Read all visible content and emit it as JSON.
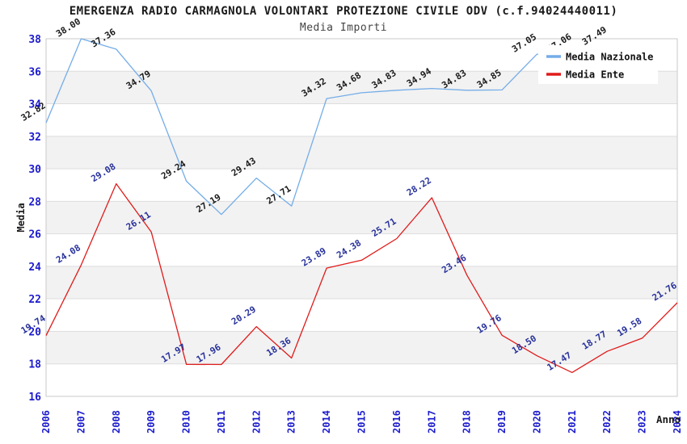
{
  "chart_data": {
    "type": "line",
    "title": "EMERGENZA RADIO CARMAGNOLA VOLONTARI PROTEZIONE CIVILE ODV (c.f.94024440011)",
    "subtitle": "Media Importi",
    "xlabel": "Anno",
    "ylabel": "Media",
    "ylim": [
      16,
      38
    ],
    "ytick_step": 2,
    "grid": "horizontal-bands",
    "legend_position": "top-right",
    "categories": [
      "2006",
      "2007",
      "2008",
      "2009",
      "2010",
      "2011",
      "2012",
      "2013",
      "2014",
      "2015",
      "2016",
      "2017",
      "2018",
      "2019",
      "2020",
      "2021",
      "2022",
      "2023",
      "2024"
    ],
    "series": [
      {
        "name": "Media Nazionale",
        "color": "#74ade8",
        "label_color": "#1a1a1a",
        "values": [
          32.82,
          38.0,
          37.36,
          34.79,
          29.24,
          27.19,
          29.43,
          27.71,
          34.32,
          34.68,
          34.83,
          34.94,
          34.83,
          34.85,
          37.05,
          37.06,
          37.49,
          null,
          null
        ]
      },
      {
        "name": "Media Ente",
        "color": "#e01b1b",
        "label_color": "#28329b",
        "values": [
          19.74,
          24.08,
          29.08,
          26.11,
          17.97,
          17.96,
          20.29,
          18.36,
          23.89,
          24.38,
          25.71,
          28.22,
          23.46,
          19.76,
          18.5,
          17.47,
          18.77,
          19.58,
          21.76
        ]
      }
    ],
    "colors": {
      "axis_tick_labels": "#1c1ccd",
      "band_gray": "#f2f2f2",
      "band_white": "#ffffff",
      "gridline": "#dddddd",
      "plot_border": "#c9c9c9",
      "legend_bg": "#ffffff",
      "legend_text": "#111111",
      "axis_title": "#1a1a1a"
    }
  }
}
